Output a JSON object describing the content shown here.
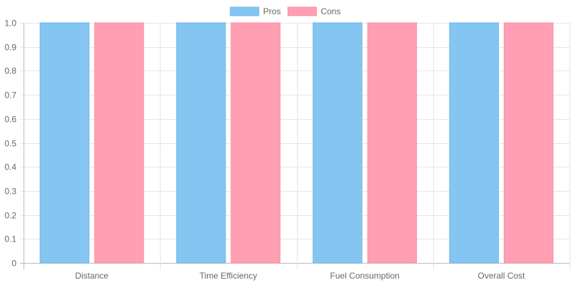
{
  "chart_data": {
    "type": "bar",
    "categories": [
      "Distance",
      "Time Efficiency",
      "Fuel Consumption",
      "Overall Cost"
    ],
    "series": [
      {
        "name": "Pros",
        "values": [
          1,
          1,
          1,
          1
        ],
        "fill": "#85c5f1",
        "stroke": "#6fb8ee"
      },
      {
        "name": "Cons",
        "values": [
          1,
          1,
          1,
          1
        ],
        "fill": "#ff9fb3",
        "stroke": "#ff8ca5"
      }
    ],
    "ylim": [
      0,
      1
    ],
    "yticks": [
      "0",
      "0.1",
      "0.2",
      "0.3",
      "0.4",
      "0.5",
      "0.6",
      "0.7",
      "0.8",
      "0.9",
      "1.0"
    ],
    "grid": true,
    "legend": "top-center"
  }
}
